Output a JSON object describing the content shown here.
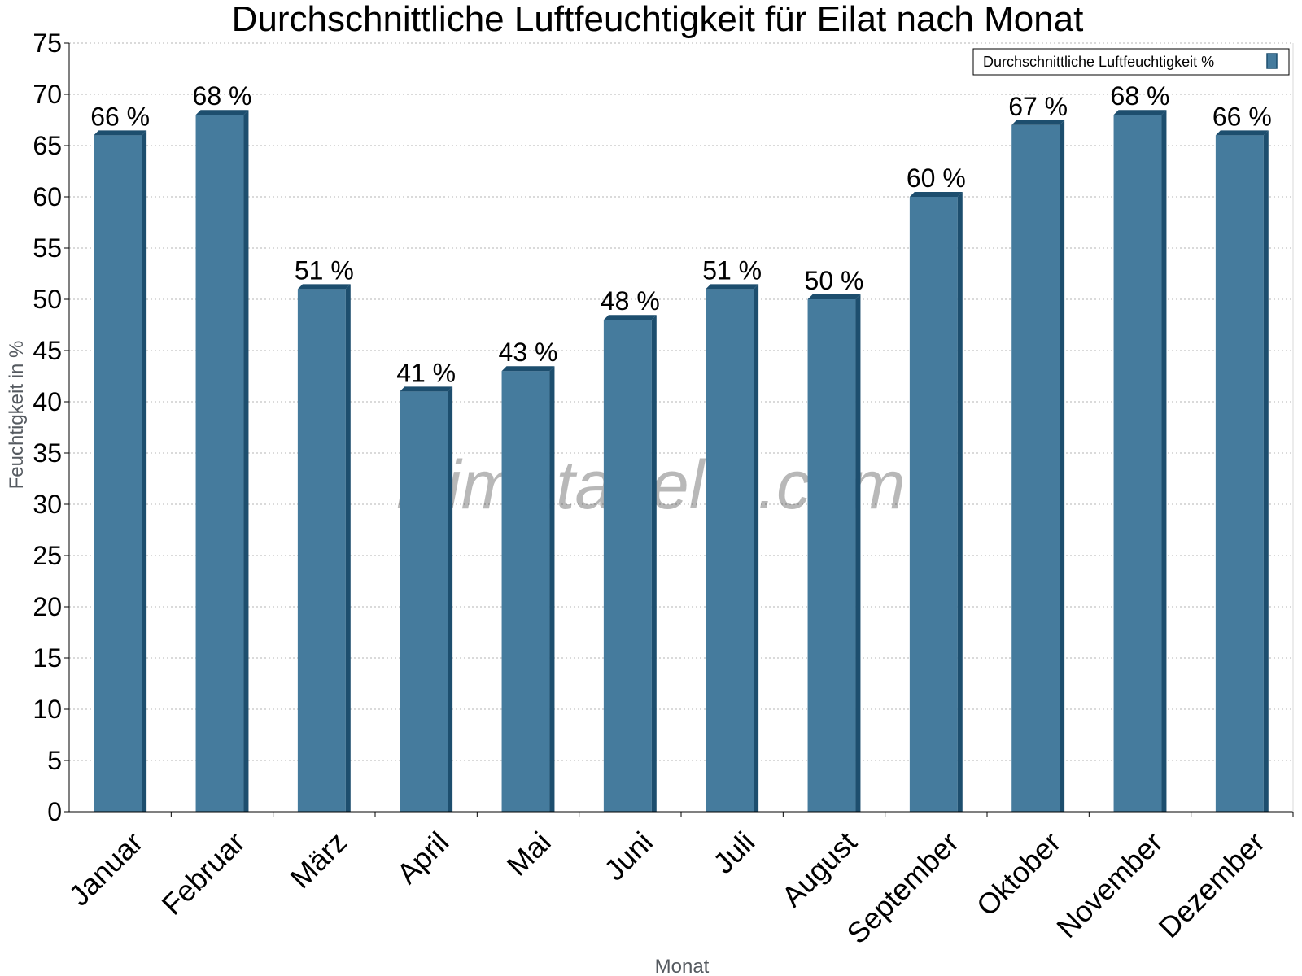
{
  "chart_data": {
    "type": "bar",
    "title": "Durchschnittliche Luftfeuchtigkeit für Eilat nach Monat",
    "xlabel": "Monat",
    "ylabel": "Feuchtigkeit in %",
    "categories": [
      "Januar",
      "Februar",
      "März",
      "April",
      "Mai",
      "Juni",
      "Juli",
      "August",
      "September",
      "Oktober",
      "November",
      "Dezember"
    ],
    "series": [
      {
        "name": "Durchschnittliche Luftfeuchtigkeit %",
        "values": [
          66,
          68,
          51,
          41,
          43,
          48,
          51,
          50,
          60,
          67,
          68,
          66
        ],
        "labels": [
          "66 %",
          "68 %",
          "51 %",
          "41 %",
          "43 %",
          "48 %",
          "51 %",
          "50 %",
          "60 %",
          "67 %",
          "68 %",
          "66 %"
        ],
        "color": "#457b9d",
        "edge_color": "#1d4e6e"
      }
    ],
    "yticks": [
      0,
      5,
      10,
      15,
      20,
      25,
      30,
      35,
      40,
      45,
      50,
      55,
      60,
      65,
      70,
      75
    ],
    "ylim": [
      0,
      75
    ],
    "grid": "horizontal dotted",
    "legend_position": "top-right"
  },
  "watermark": "klimatabelle.com"
}
